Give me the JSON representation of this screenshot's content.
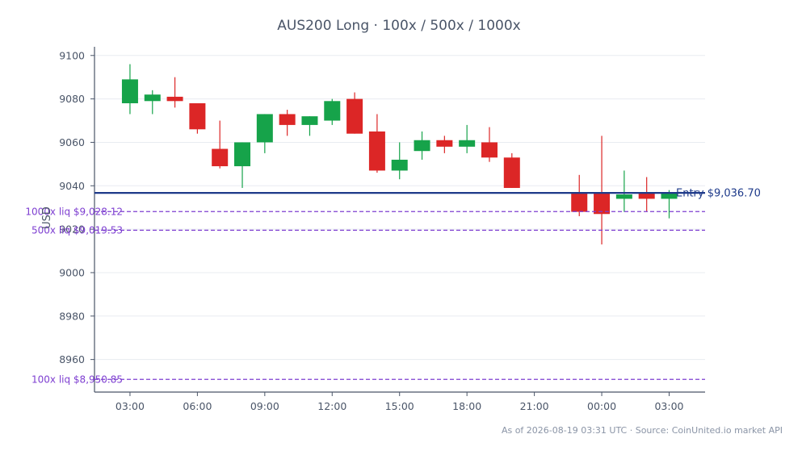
{
  "chart_data": {
    "type": "candlestick",
    "title": "AUS200 Long · 100x / 500x / 1000x",
    "ylabel": "USD",
    "xlabel": "",
    "ylim": [
      8945,
      9104
    ],
    "y_ticks": [
      9100,
      9080,
      9060,
      9040,
      9020,
      9000,
      8980,
      8960
    ],
    "y_tick_labels": [
      "9100",
      "9080",
      "9060",
      "9040",
      "9020",
      "9000",
      "8980",
      "8960"
    ],
    "x_ticks": [
      {
        "label": "03:00",
        "t": 3
      },
      {
        "label": "06:00",
        "t": 6
      },
      {
        "label": "09:00",
        "t": 9
      },
      {
        "label": "12:00",
        "t": 12
      },
      {
        "label": "15:00",
        "t": 15
      },
      {
        "label": "18:00",
        "t": 18
      },
      {
        "label": "21:00",
        "t": 21
      },
      {
        "label": "00:00",
        "t": 24
      },
      {
        "label": "03:00",
        "t": 27
      }
    ],
    "xlim": [
      1.42,
      28.6
    ],
    "grid": true,
    "up_color": "#16a34a",
    "down_color": "#dc2626",
    "candles": [
      {
        "t": 3,
        "open": 9078,
        "high": 9096,
        "low": 9073,
        "close": 9089
      },
      {
        "t": 4,
        "open": 9079,
        "high": 9084,
        "low": 9073,
        "close": 9082
      },
      {
        "t": 5,
        "open": 9081,
        "high": 9090,
        "low": 9076,
        "close": 9079
      },
      {
        "t": 6,
        "open": 9078,
        "high": 9078,
        "low": 9064,
        "close": 9066
      },
      {
        "t": 7,
        "open": 9057,
        "high": 9070,
        "low": 9048,
        "close": 9049
      },
      {
        "t": 8,
        "open": 9049,
        "high": 9060,
        "low": 9039,
        "close": 9060
      },
      {
        "t": 9,
        "open": 9060,
        "high": 9073,
        "low": 9055,
        "close": 9073
      },
      {
        "t": 10,
        "open": 9073,
        "high": 9075,
        "low": 9063,
        "close": 9068
      },
      {
        "t": 11,
        "open": 9068,
        "high": 9072,
        "low": 9063,
        "close": 9072
      },
      {
        "t": 12,
        "open": 9070,
        "high": 9080,
        "low": 9068,
        "close": 9079
      },
      {
        "t": 13,
        "open": 9080,
        "high": 9083,
        "low": 9064,
        "close": 9064
      },
      {
        "t": 14,
        "open": 9065,
        "high": 9073,
        "low": 9046,
        "close": 9047
      },
      {
        "t": 15,
        "open": 9047,
        "high": 9060,
        "low": 9043,
        "close": 9052
      },
      {
        "t": 16,
        "open": 9056,
        "high": 9065,
        "low": 9052,
        "close": 9061
      },
      {
        "t": 17,
        "open": 9061,
        "high": 9063,
        "low": 9055,
        "close": 9058
      },
      {
        "t": 18,
        "open": 9058,
        "high": 9068,
        "low": 9055,
        "close": 9061
      },
      {
        "t": 19,
        "open": 9060,
        "high": 9067,
        "low": 9051,
        "close": 9053
      },
      {
        "t": 20,
        "open": 9053,
        "high": 9055,
        "low": 9039,
        "close": 9039
      },
      {
        "t": 23,
        "open": 9037,
        "high": 9045,
        "low": 9026,
        "close": 9028
      },
      {
        "t": 24,
        "open": 9037,
        "high": 9063,
        "low": 9013,
        "close": 9027
      },
      {
        "t": 25,
        "open": 9034,
        "high": 9047,
        "low": 9028,
        "close": 9036
      },
      {
        "t": 26,
        "open": 9037,
        "high": 9044,
        "low": 9028,
        "close": 9034
      },
      {
        "t": 27,
        "open": 9034,
        "high": 9038,
        "low": 9025,
        "close": 9037
      }
    ],
    "entry": {
      "value": 9036.7,
      "label": "Entry $9,036.70",
      "color": "#1e3a8a"
    },
    "liquidation_lines": [
      {
        "value": 9028.12,
        "label": "1000x liq $9,028.12",
        "color": "#7e3fd1"
      },
      {
        "value": 9019.53,
        "label": "500x liq $9,019.53",
        "color": "#7e3fd1"
      },
      {
        "value": 8950.85,
        "label": "100x liq $8,950.85",
        "color": "#7e3fd1"
      }
    ],
    "footer": "As of 2026-08-19 03:31 UTC · Source: CoinUnited.io market API"
  }
}
